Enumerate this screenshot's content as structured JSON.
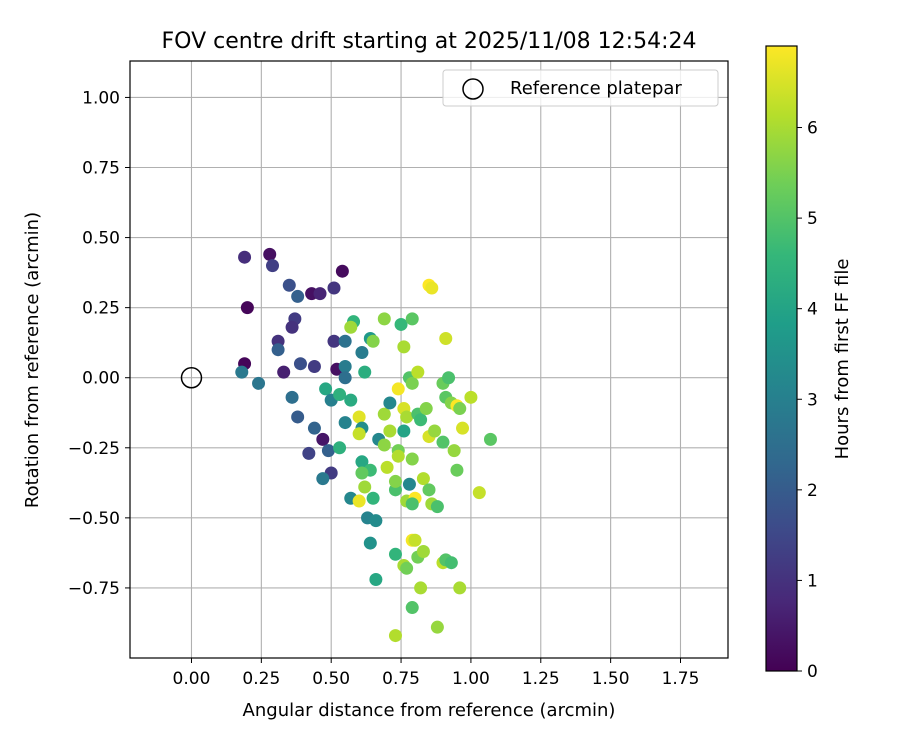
{
  "chart_data": {
    "type": "scatter",
    "title": "FOV centre drift starting at 2025/11/08 12:54:24",
    "xlabel": "Angular distance from reference (arcmin)",
    "ylabel": "Rotation from reference (arcmin)",
    "xlim": [
      -0.22,
      1.92
    ],
    "ylim": [
      -1.0,
      1.13
    ],
    "xticks": [
      0.0,
      0.25,
      0.5,
      0.75,
      1.0,
      1.25,
      1.5,
      1.75
    ],
    "xtick_labels": [
      "0.00",
      "0.25",
      "0.50",
      "0.75",
      "1.00",
      "1.25",
      "1.50",
      "1.75"
    ],
    "yticks": [
      1.0,
      0.75,
      0.5,
      0.25,
      0.0,
      -0.25,
      -0.5,
      -0.75
    ],
    "ytick_labels": [
      "1.00",
      "0.75",
      "0.50",
      "0.25",
      "0.00",
      "−0.25",
      "−0.50",
      "−0.75"
    ],
    "grid": true,
    "legend": {
      "label": "Reference platepar",
      "placement": "top-right"
    },
    "reference_point": {
      "x": 0.0,
      "y": 0.0
    },
    "colorbar": {
      "label": "Hours from first FF file",
      "range": [
        0,
        6.9
      ],
      "ticks": [
        0,
        1,
        2,
        3,
        4,
        5,
        6
      ],
      "tick_labels": [
        "0",
        "1",
        "2",
        "3",
        "4",
        "5",
        "6"
      ],
      "colormap": [
        "#440154",
        "#482878",
        "#3e4989",
        "#31688e",
        "#26828e",
        "#1f9e89",
        "#35b779",
        "#6ece58",
        "#b5de2b",
        "#fde725"
      ]
    },
    "points": [
      {
        "x": 0.19,
        "y": 0.05,
        "t": 0.1
      },
      {
        "x": 0.2,
        "y": 0.25,
        "t": 0.1
      },
      {
        "x": 0.19,
        "y": 0.43,
        "t": 0.9
      },
      {
        "x": 0.28,
        "y": 0.44,
        "t": 0.3
      },
      {
        "x": 0.29,
        "y": 0.4,
        "t": 1.3
      },
      {
        "x": 0.35,
        "y": 0.33,
        "t": 1.7
      },
      {
        "x": 0.43,
        "y": 0.3,
        "t": 0.3
      },
      {
        "x": 0.46,
        "y": 0.3,
        "t": 0.7
      },
      {
        "x": 0.38,
        "y": 0.29,
        "t": 2.1
      },
      {
        "x": 0.51,
        "y": 0.32,
        "t": 1.1
      },
      {
        "x": 0.54,
        "y": 0.38,
        "t": 0.2
      },
      {
        "x": 0.37,
        "y": 0.21,
        "t": 1.2
      },
      {
        "x": 0.36,
        "y": 0.18,
        "t": 1.0
      },
      {
        "x": 0.31,
        "y": 0.13,
        "t": 1.0
      },
      {
        "x": 0.31,
        "y": 0.1,
        "t": 2.1
      },
      {
        "x": 0.18,
        "y": 0.02,
        "t": 2.8
      },
      {
        "x": 0.24,
        "y": -0.02,
        "t": 2.7
      },
      {
        "x": 0.33,
        "y": 0.02,
        "t": 0.6
      },
      {
        "x": 0.39,
        "y": 0.05,
        "t": 1.7
      },
      {
        "x": 0.44,
        "y": 0.04,
        "t": 1.2
      },
      {
        "x": 0.51,
        "y": 0.13,
        "t": 1.1
      },
      {
        "x": 0.55,
        "y": 0.13,
        "t": 2.6
      },
      {
        "x": 0.36,
        "y": -0.07,
        "t": 2.5
      },
      {
        "x": 0.38,
        "y": -0.14,
        "t": 2.0
      },
      {
        "x": 0.44,
        "y": -0.18,
        "t": 2.2
      },
      {
        "x": 0.47,
        "y": -0.22,
        "t": 0.4
      },
      {
        "x": 0.42,
        "y": -0.27,
        "t": 1.4
      },
      {
        "x": 0.49,
        "y": -0.26,
        "t": 2.1
      },
      {
        "x": 0.5,
        "y": -0.34,
        "t": 1.2
      },
      {
        "x": 0.47,
        "y": -0.36,
        "t": 2.8
      },
      {
        "x": 0.52,
        "y": 0.03,
        "t": 0.3
      },
      {
        "x": 0.55,
        "y": 0.04,
        "t": 2.9
      },
      {
        "x": 0.55,
        "y": 0.0,
        "t": 2.5
      },
      {
        "x": 0.48,
        "y": -0.04,
        "t": 4.1
      },
      {
        "x": 0.5,
        "y": -0.08,
        "t": 3.0
      },
      {
        "x": 0.53,
        "y": -0.06,
        "t": 4.4
      },
      {
        "x": 0.55,
        "y": -0.16,
        "t": 3.1
      },
      {
        "x": 0.57,
        "y": -0.08,
        "t": 4.2
      },
      {
        "x": 0.58,
        "y": 0.2,
        "t": 4.5
      },
      {
        "x": 0.61,
        "y": 0.09,
        "t": 2.9
      },
      {
        "x": 0.62,
        "y": 0.02,
        "t": 4.3
      },
      {
        "x": 0.64,
        "y": 0.14,
        "t": 3.7
      },
      {
        "x": 0.65,
        "y": 0.13,
        "t": 5.6
      },
      {
        "x": 0.57,
        "y": 0.18,
        "t": 5.9
      },
      {
        "x": 0.6,
        "y": -0.14,
        "t": 6.6
      },
      {
        "x": 0.61,
        "y": -0.18,
        "t": 3.4
      },
      {
        "x": 0.6,
        "y": -0.2,
        "t": 6.3
      },
      {
        "x": 0.53,
        "y": -0.25,
        "t": 4.4
      },
      {
        "x": 0.61,
        "y": -0.3,
        "t": 4.1
      },
      {
        "x": 0.64,
        "y": -0.33,
        "t": 4.7
      },
      {
        "x": 0.61,
        "y": -0.34,
        "t": 5.2
      },
      {
        "x": 0.57,
        "y": -0.43,
        "t": 3.2
      },
      {
        "x": 0.6,
        "y": -0.44,
        "t": 6.7
      },
      {
        "x": 0.62,
        "y": -0.39,
        "t": 5.9
      },
      {
        "x": 0.65,
        "y": -0.43,
        "t": 4.5
      },
      {
        "x": 0.63,
        "y": -0.5,
        "t": 3.1
      },
      {
        "x": 0.66,
        "y": -0.51,
        "t": 3.3
      },
      {
        "x": 0.64,
        "y": -0.59,
        "t": 3.5
      },
      {
        "x": 0.66,
        "y": -0.72,
        "t": 4.1
      },
      {
        "x": 0.67,
        "y": -0.22,
        "t": 3.2
      },
      {
        "x": 0.69,
        "y": -0.24,
        "t": 5.7
      },
      {
        "x": 0.69,
        "y": -0.13,
        "t": 5.9
      },
      {
        "x": 0.71,
        "y": -0.09,
        "t": 3.2
      },
      {
        "x": 0.71,
        "y": -0.19,
        "t": 6.0
      },
      {
        "x": 0.7,
        "y": -0.32,
        "t": 6.2
      },
      {
        "x": 0.73,
        "y": -0.4,
        "t": 4.9
      },
      {
        "x": 0.73,
        "y": -0.37,
        "t": 5.6
      },
      {
        "x": 0.74,
        "y": -0.26,
        "t": 5.4
      },
      {
        "x": 0.74,
        "y": -0.28,
        "t": 6.1
      },
      {
        "x": 0.76,
        "y": -0.11,
        "t": 6.5
      },
      {
        "x": 0.74,
        "y": -0.04,
        "t": 6.8
      },
      {
        "x": 0.77,
        "y": -0.14,
        "t": 6.0
      },
      {
        "x": 0.76,
        "y": -0.19,
        "t": 4.0
      },
      {
        "x": 0.78,
        "y": -0.38,
        "t": 3.2
      },
      {
        "x": 0.79,
        "y": -0.29,
        "t": 5.6
      },
      {
        "x": 0.77,
        "y": -0.44,
        "t": 5.9
      },
      {
        "x": 0.8,
        "y": -0.43,
        "t": 6.9
      },
      {
        "x": 0.79,
        "y": -0.45,
        "t": 4.9
      },
      {
        "x": 0.69,
        "y": 0.21,
        "t": 5.7
      },
      {
        "x": 0.75,
        "y": 0.19,
        "t": 4.6
      },
      {
        "x": 0.79,
        "y": 0.21,
        "t": 5.1
      },
      {
        "x": 0.76,
        "y": 0.11,
        "t": 6.0
      },
      {
        "x": 0.78,
        "y": 0.0,
        "t": 5.0
      },
      {
        "x": 0.79,
        "y": -0.02,
        "t": 5.5
      },
      {
        "x": 0.81,
        "y": 0.02,
        "t": 6.2
      },
      {
        "x": 0.81,
        "y": -0.13,
        "t": 4.9
      },
      {
        "x": 0.82,
        "y": -0.15,
        "t": 4.7
      },
      {
        "x": 0.84,
        "y": -0.11,
        "t": 5.6
      },
      {
        "x": 0.85,
        "y": 0.33,
        "t": 6.9
      },
      {
        "x": 0.86,
        "y": 0.32,
        "t": 6.7
      },
      {
        "x": 0.85,
        "y": -0.21,
        "t": 6.5
      },
      {
        "x": 0.87,
        "y": -0.19,
        "t": 5.8
      },
      {
        "x": 0.9,
        "y": -0.23,
        "t": 5.0
      },
      {
        "x": 0.83,
        "y": -0.36,
        "t": 6.1
      },
      {
        "x": 0.85,
        "y": -0.4,
        "t": 5.2
      },
      {
        "x": 0.86,
        "y": -0.45,
        "t": 5.9
      },
      {
        "x": 0.88,
        "y": -0.46,
        "t": 4.9
      },
      {
        "x": 0.79,
        "y": -0.58,
        "t": 6.8
      },
      {
        "x": 0.8,
        "y": -0.58,
        "t": 6.3
      },
      {
        "x": 0.81,
        "y": -0.64,
        "t": 5.4
      },
      {
        "x": 0.83,
        "y": -0.62,
        "t": 5.9
      },
      {
        "x": 0.73,
        "y": -0.63,
        "t": 4.5
      },
      {
        "x": 0.76,
        "y": -0.67,
        "t": 6.0
      },
      {
        "x": 0.77,
        "y": -0.68,
        "t": 5.4
      },
      {
        "x": 0.82,
        "y": -0.75,
        "t": 6.0
      },
      {
        "x": 0.79,
        "y": -0.82,
        "t": 5.0
      },
      {
        "x": 0.73,
        "y": -0.92,
        "t": 6.1
      },
      {
        "x": 0.88,
        "y": -0.89,
        "t": 5.8
      },
      {
        "x": 0.9,
        "y": -0.66,
        "t": 6.2
      },
      {
        "x": 0.91,
        "y": -0.65,
        "t": 5.0
      },
      {
        "x": 0.93,
        "y": -0.66,
        "t": 4.8
      },
      {
        "x": 0.96,
        "y": -0.75,
        "t": 6.0
      },
      {
        "x": 0.91,
        "y": 0.14,
        "t": 6.4
      },
      {
        "x": 0.9,
        "y": -0.02,
        "t": 5.3
      },
      {
        "x": 0.92,
        "y": 0.0,
        "t": 4.9
      },
      {
        "x": 0.91,
        "y": -0.07,
        "t": 5.1
      },
      {
        "x": 0.93,
        "y": -0.09,
        "t": 5.6
      },
      {
        "x": 0.95,
        "y": -0.1,
        "t": 6.9
      },
      {
        "x": 0.96,
        "y": -0.11,
        "t": 5.5
      },
      {
        "x": 1.0,
        "y": -0.07,
        "t": 6.2
      },
      {
        "x": 0.97,
        "y": -0.18,
        "t": 6.5
      },
      {
        "x": 0.94,
        "y": -0.26,
        "t": 5.8
      },
      {
        "x": 0.95,
        "y": -0.33,
        "t": 5.3
      },
      {
        "x": 1.03,
        "y": -0.41,
        "t": 6.3
      },
      {
        "x": 1.07,
        "y": -0.22,
        "t": 5.1
      }
    ]
  }
}
